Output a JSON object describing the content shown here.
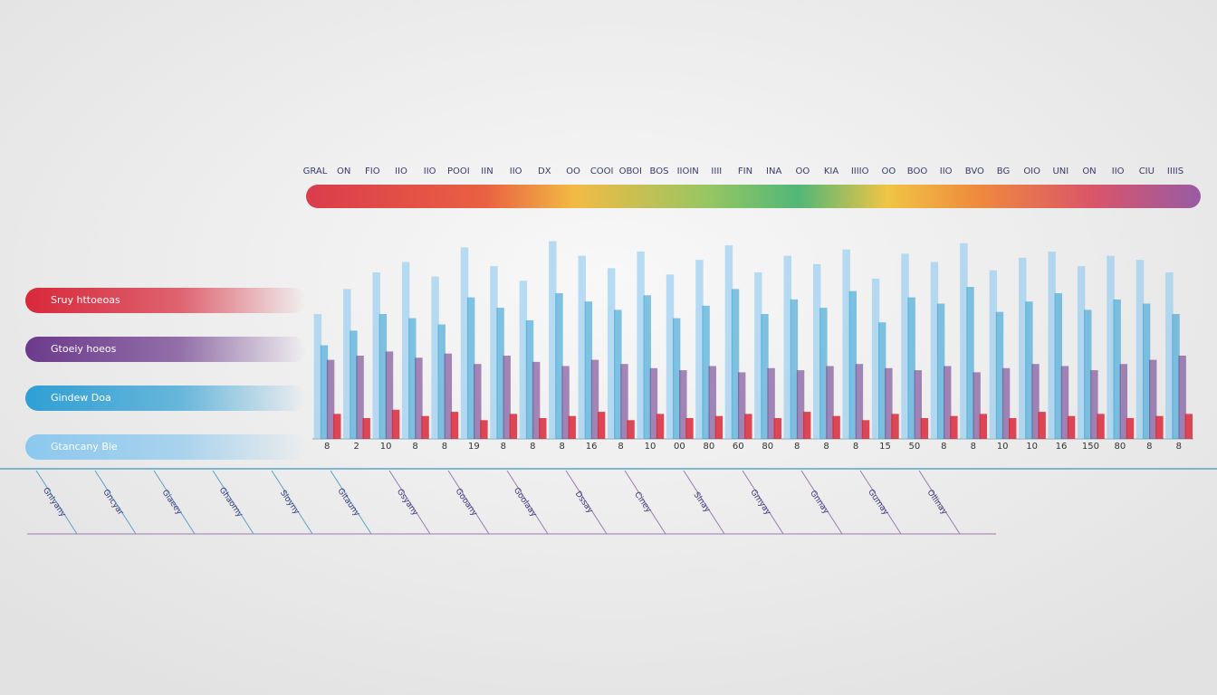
{
  "chart_data": {
    "type": "bar",
    "categories": [
      "8",
      "2",
      "10",
      "8",
      "8",
      "19",
      "8",
      "8",
      "8",
      "16",
      "8",
      "10",
      "00",
      "80",
      "60",
      "80",
      "8",
      "8",
      "8",
      "15",
      "50",
      "8",
      "8",
      "10",
      "10",
      "16",
      "150",
      "80",
      "8",
      "8"
    ],
    "series": [
      {
        "name": "Sruy httoeoas",
        "color": "#d8283a",
        "values": [
          12,
          10,
          14,
          11,
          13,
          9,
          12,
          10,
          11,
          13,
          9,
          12,
          10,
          11,
          12,
          10,
          13,
          11,
          9,
          12,
          10,
          11,
          12,
          10,
          13,
          11,
          12,
          10,
          11,
          12
        ]
      },
      {
        "name": "Gtoeiy hoeos",
        "color": "#6c3a8c",
        "values": [
          38,
          40,
          42,
          39,
          41,
          36,
          40,
          37,
          35,
          38,
          36,
          34,
          33,
          35,
          32,
          34,
          33,
          35,
          36,
          34,
          33,
          35,
          32,
          34,
          36,
          35,
          33,
          36,
          38,
          40
        ]
      },
      {
        "name": "Gindew Doa",
        "color": "#2f9fd4",
        "values": [
          45,
          52,
          60,
          58,
          55,
          68,
          63,
          57,
          70,
          66,
          62,
          69,
          58,
          64,
          72,
          60,
          67,
          63,
          71,
          56,
          68,
          65,
          73,
          61,
          66,
          70,
          62,
          67,
          65,
          60
        ]
      },
      {
        "name": "Gtancany Bie",
        "color": "#8cc8ee",
        "values": [
          60,
          72,
          80,
          85,
          78,
          92,
          83,
          76,
          95,
          88,
          82,
          90,
          79,
          86,
          93,
          80,
          88,
          84,
          91,
          77,
          89,
          85,
          94,
          81,
          87,
          90,
          83,
          88,
          86,
          80
        ]
      }
    ],
    "ylim": [
      0,
      100
    ],
    "top_labels": [
      "GRAL",
      "ON",
      "FIO",
      "IIO",
      "IIO",
      "POOI",
      "IIN",
      "IIO",
      "DX",
      "OO",
      "COOI",
      "OBOI",
      "BOS",
      "IIOIN",
      "IIII",
      "FIN",
      "INA",
      "OO",
      "KIA",
      "IIIIO",
      "OO",
      "BOO",
      "IIO",
      "BVO",
      "BG",
      "OIO",
      "UNI",
      "ON",
      "IIO",
      "CIU",
      "IIIIS"
    ],
    "annotations": [
      "Gnlyany",
      "Gncyar",
      "Giaeey",
      "Ghaomy",
      "Sloyny",
      "Gitauny",
      "Gsyany",
      "Gooany",
      "Goolaay",
      "Dssay",
      "Ciney",
      "Slnay",
      "Gmyay",
      "Gnnay",
      "Gumay",
      "Ollinay"
    ]
  }
}
